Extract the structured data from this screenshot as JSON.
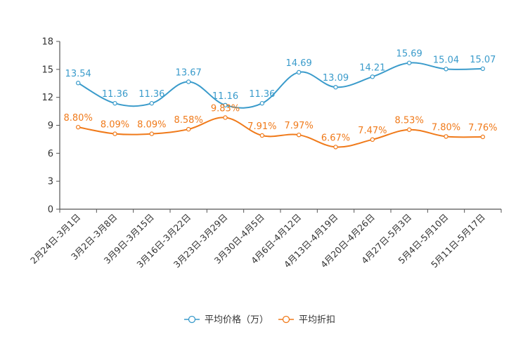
{
  "chart_data": {
    "type": "line",
    "title": "",
    "xlabel": "",
    "ylabel": "",
    "ylim": [
      0,
      18
    ],
    "yticks": [
      0,
      3,
      6,
      9,
      12,
      15,
      18
    ],
    "grid": false,
    "legend_position": "bottom",
    "categories": [
      "2月24日-3月1日",
      "3月2日-3月8日",
      "3月9日-3月15日",
      "3月16日-3月22日",
      "3月23日-3月29日",
      "3月30日-4月5日",
      "4月6日-4月12日",
      "4月13日-4月19日",
      "4月20日-4月26日",
      "4月27日-5月3日",
      "5月4日-5月10日",
      "5月11日-5月17日"
    ],
    "series": [
      {
        "name": "平均价格（万）",
        "color": "#3a9bcb",
        "values": [
          13.54,
          11.36,
          11.36,
          13.67,
          11.16,
          11.36,
          14.69,
          13.09,
          14.21,
          15.69,
          15.04,
          15.07
        ],
        "labels": [
          "13.54",
          "11.36",
          "11.36",
          "13.67",
          "11.16",
          "11.36",
          "14.69",
          "13.09",
          "14.21",
          "15.69",
          "15.04",
          "15.07"
        ]
      },
      {
        "name": "平均折扣",
        "color": "#f07a1a",
        "values": [
          8.8,
          8.09,
          8.09,
          8.58,
          9.83,
          7.91,
          7.97,
          6.67,
          7.47,
          8.53,
          7.8,
          7.76
        ],
        "labels": [
          "8.80%",
          "8.09%",
          "8.09%",
          "8.58%",
          "9.83%",
          "7.91%",
          "7.97%",
          "6.67%",
          "7.47%",
          "8.53%",
          "7.80%",
          "7.76%"
        ]
      }
    ]
  }
}
